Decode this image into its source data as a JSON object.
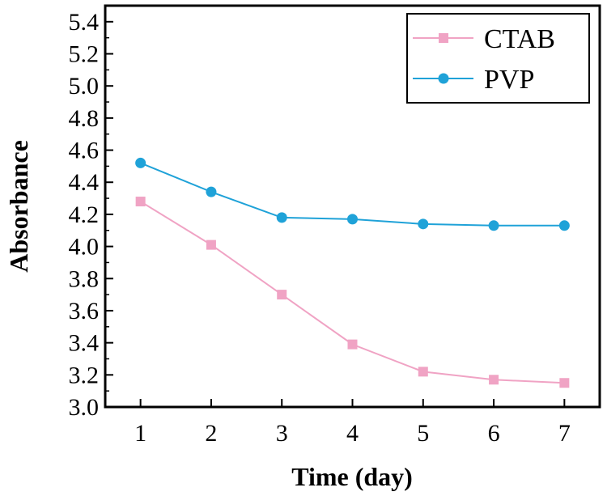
{
  "chart_data": {
    "type": "line",
    "title": "",
    "xlabel": "Time (day)",
    "ylabel": "Absorbance",
    "x": [
      1,
      2,
      3,
      4,
      5,
      6,
      7
    ],
    "xlim": [
      0.5,
      7.5
    ],
    "ylim": [
      3.0,
      5.5
    ],
    "xticks": [
      "1",
      "2",
      "3",
      "4",
      "5",
      "6",
      "7"
    ],
    "yticks": [
      "3.0",
      "3.2",
      "3.4",
      "3.6",
      "3.8",
      "4.0",
      "4.2",
      "4.4",
      "4.6",
      "4.8",
      "5.0",
      "5.2",
      "5.4"
    ],
    "grid": false,
    "legend_position": "top-right",
    "series": [
      {
        "name": "CTAB",
        "marker": "square",
        "color": "#f0a3c4",
        "values": [
          4.28,
          4.01,
          3.7,
          3.39,
          3.22,
          3.17,
          3.15
        ]
      },
      {
        "name": "PVP",
        "marker": "circle",
        "color": "#1fa2d8",
        "values": [
          4.52,
          4.34,
          4.18,
          4.17,
          4.14,
          4.13,
          4.13
        ]
      }
    ]
  }
}
